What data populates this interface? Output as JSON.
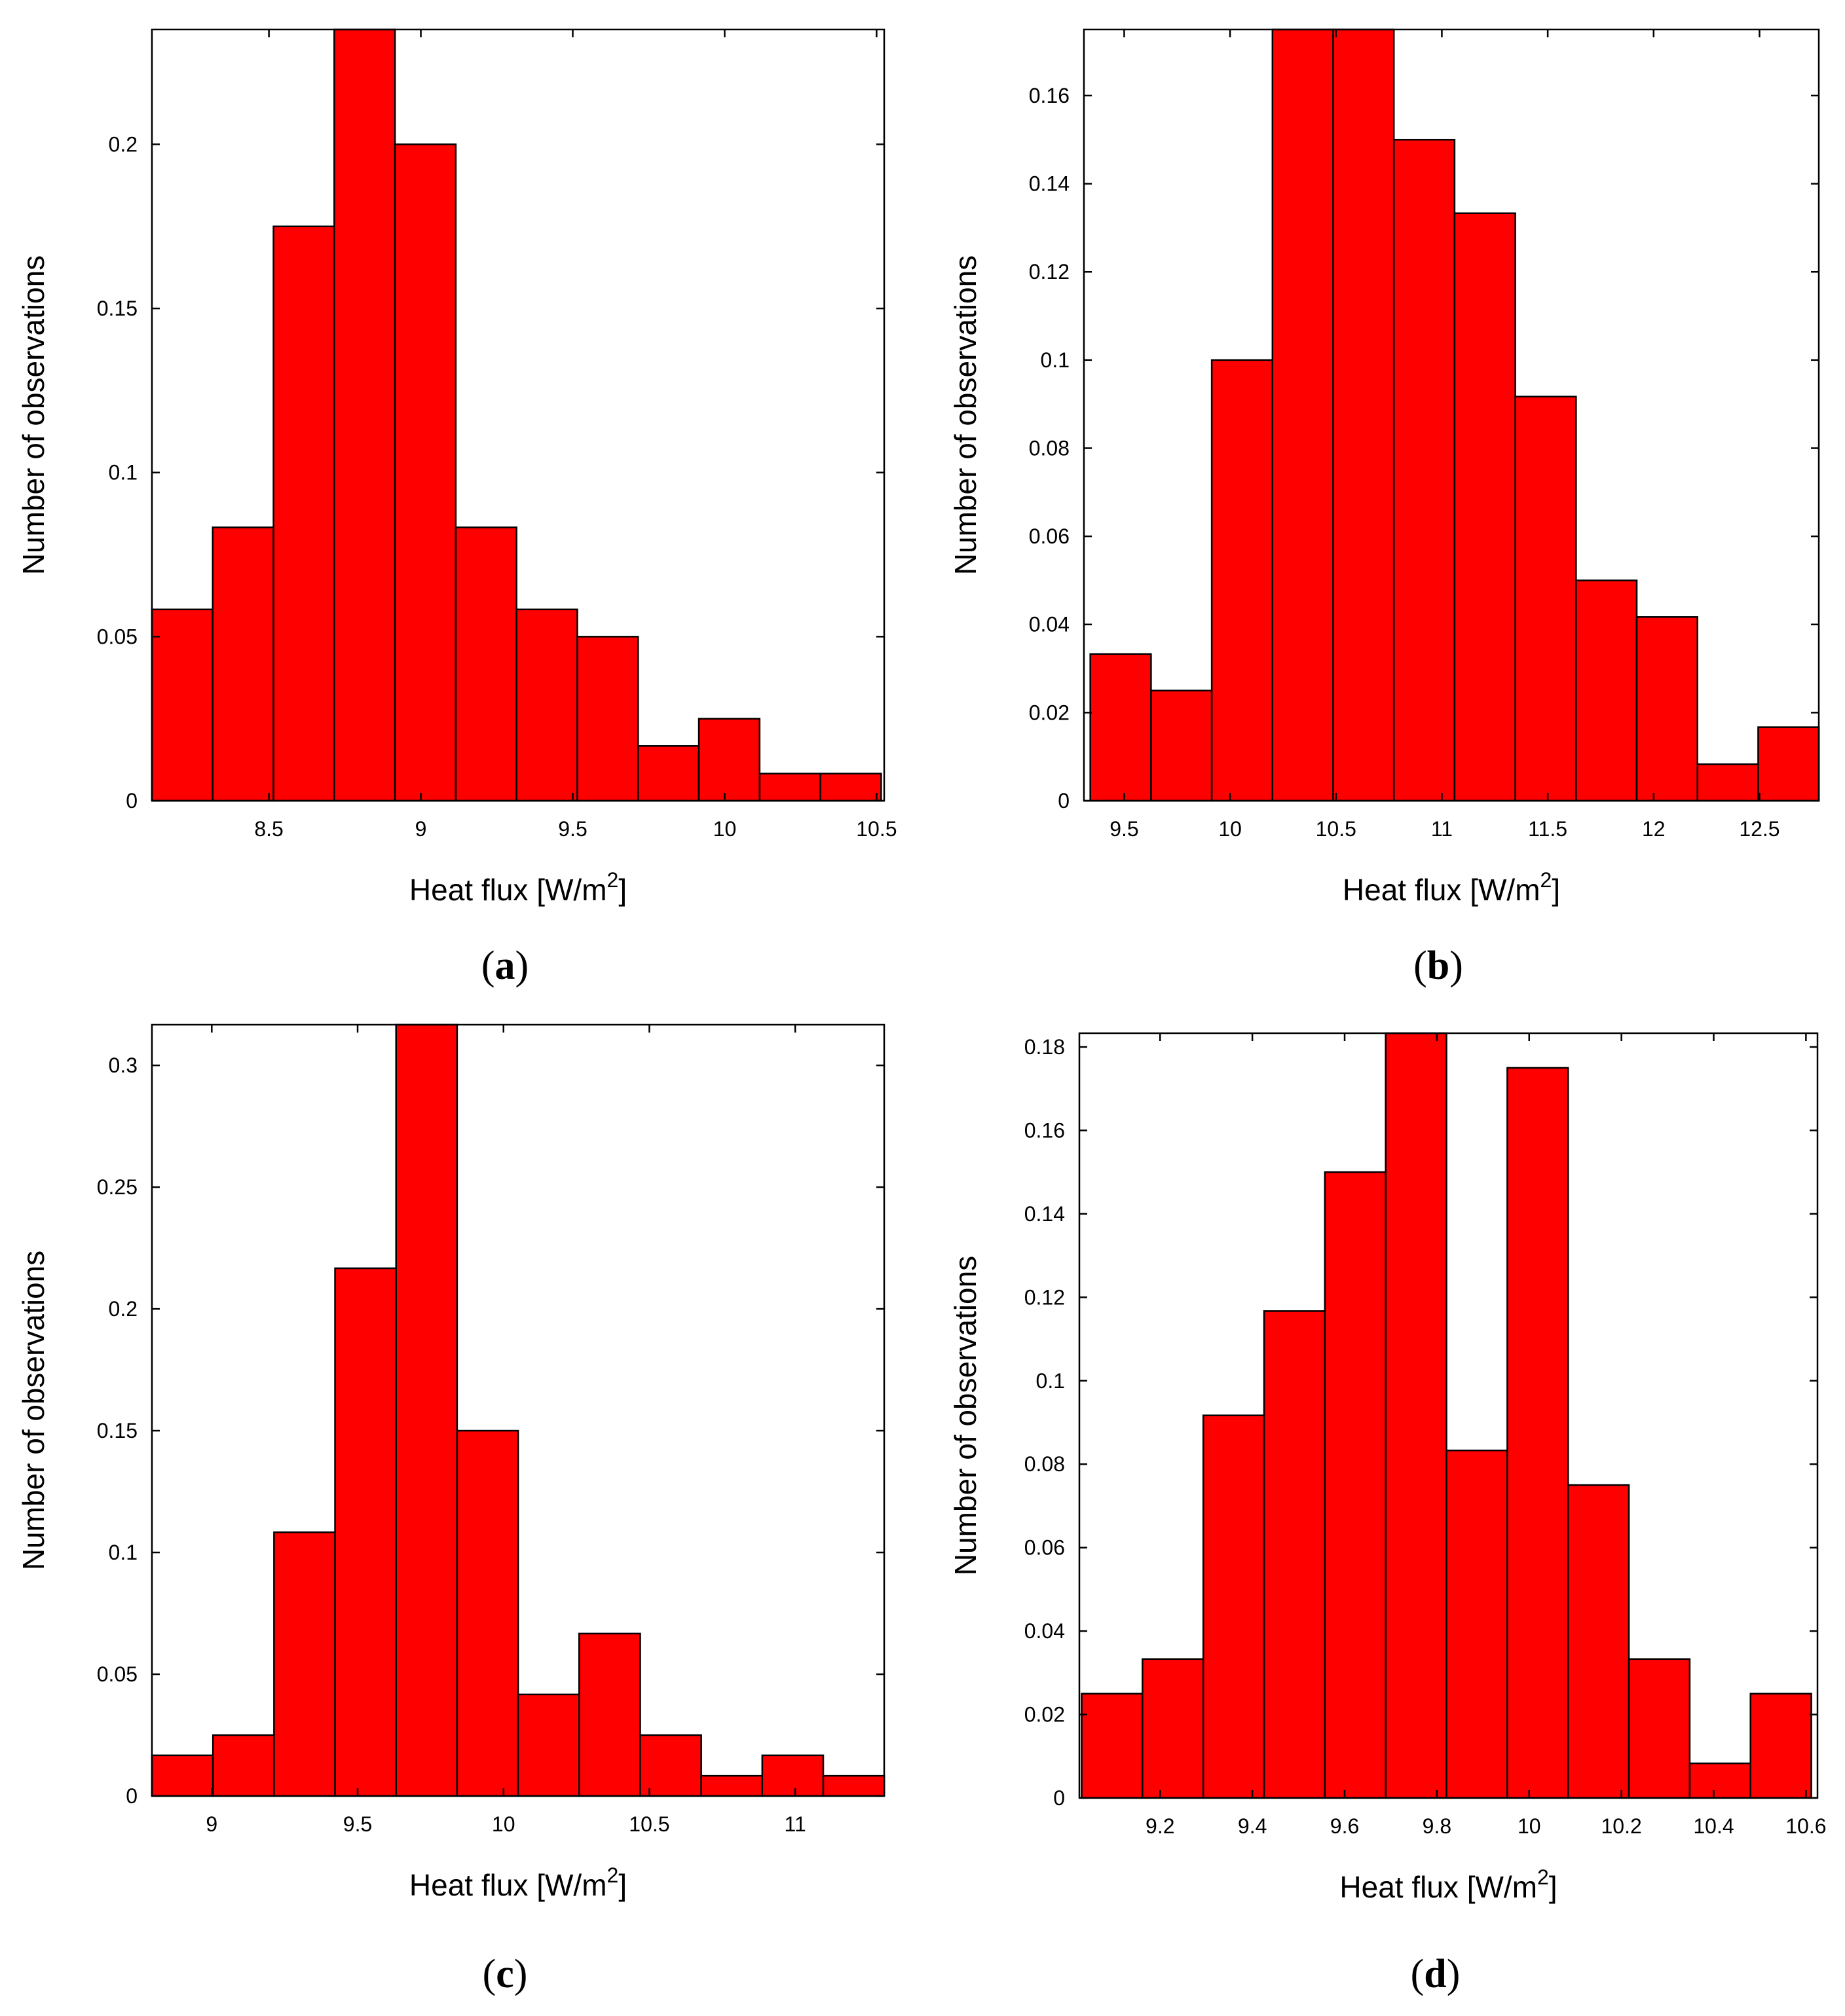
{
  "colors": {
    "bar_fill": "#ff0000",
    "bar_stroke": "#000000",
    "axis": "#000000"
  },
  "chart_data": [
    {
      "type": "bar",
      "panel": "a",
      "caption": {
        "open": "(",
        "letter": "a",
        "close": ")"
      },
      "title": "",
      "xlabel": "Heat flux [W/m",
      "xlabel_sup": "2",
      "xlabel_end": "]",
      "ylabel": "Number of observations",
      "xlim": [
        8.115,
        10.525
      ],
      "ylim": [
        0,
        0.235
      ],
      "bin_start": 8.115,
      "bin_width": 0.2,
      "values": [
        0.0583,
        0.0833,
        0.175,
        0.235,
        0.2,
        0.0833,
        0.0583,
        0.05,
        0.0167,
        0.025,
        0.0083,
        0.0083
      ],
      "xticks": [
        8.5,
        9,
        9.5,
        10,
        10.5
      ],
      "xtick_labels": [
        "8.5",
        "9",
        "9.5",
        "10",
        "10.5"
      ],
      "yticks": [
        0,
        0.05,
        0.1,
        0.15,
        0.2
      ],
      "ytick_labels": [
        "0",
        "0.05",
        "0.1",
        "0.15",
        "0.2"
      ]
    },
    {
      "type": "bar",
      "panel": "b",
      "caption": {
        "open": "(",
        "letter": "b",
        "close": ")"
      },
      "title": "",
      "xlabel": "Heat flux [W/m",
      "xlabel_sup": "2",
      "xlabel_end": "]",
      "ylabel": "Number of observations",
      "xlim": [
        9.31,
        12.78
      ],
      "ylim": [
        0,
        0.175
      ],
      "bin_start": 9.34,
      "bin_width": 0.2867,
      "values": [
        0.0333,
        0.025,
        0.1,
        0.175,
        0.175,
        0.15,
        0.1333,
        0.0917,
        0.05,
        0.0417,
        0.0083,
        0.0167
      ],
      "xticks": [
        9.5,
        10,
        10.5,
        11,
        11.5,
        12,
        12.5
      ],
      "xtick_labels": [
        "9.5",
        "10",
        "10.5",
        "11",
        "11.5",
        "12",
        "12.5"
      ],
      "yticks": [
        0,
        0.02,
        0.04,
        0.06,
        0.08,
        0.1,
        0.12,
        0.14,
        0.16
      ],
      "ytick_labels": [
        "0",
        "0.02",
        "0.04",
        "0.06",
        "0.08",
        "0.1",
        "0.12",
        "0.14",
        "0.16"
      ]
    },
    {
      "type": "bar",
      "panel": "c",
      "caption": {
        "open": "(",
        "letter": "c",
        "close": ")"
      },
      "title": "",
      "xlabel": "Heat flux [W/m",
      "xlabel_sup": "2",
      "xlabel_end": "]",
      "ylabel": "Number of observations",
      "xlim": [
        8.795,
        11.305
      ],
      "ylim": [
        0,
        0.3167
      ],
      "bin_start": 8.795,
      "bin_width": 0.2092,
      "values": [
        0.0167,
        0.025,
        0.1083,
        0.2167,
        0.3167,
        0.15,
        0.0417,
        0.0667,
        0.025,
        0.0083,
        0.0167,
        0.0083
      ],
      "xticks": [
        9,
        9.5,
        10,
        10.5,
        11
      ],
      "xtick_labels": [
        "9",
        "9.5",
        "10",
        "10.5",
        "11"
      ],
      "yticks": [
        0,
        0.05,
        0.1,
        0.15,
        0.2,
        0.25,
        0.3
      ],
      "ytick_labels": [
        "0",
        "0.05",
        "0.1",
        "0.15",
        "0.2",
        "0.25",
        "0.3"
      ]
    },
    {
      "type": "bar",
      "panel": "d",
      "caption": {
        "open": "(",
        "letter": "d",
        "close": ")"
      },
      "title": "",
      "xlabel": "Heat flux [W/m",
      "xlabel_sup": "2",
      "xlabel_end": "]",
      "ylabel": "Number of observations",
      "xlim": [
        9.025,
        10.625
      ],
      "ylim": [
        0,
        0.1833
      ],
      "bin_start": 9.03,
      "bin_width": 0.1318,
      "values": [
        0.025,
        0.0333,
        0.0917,
        0.1167,
        0.15,
        0.1833,
        0.0833,
        0.175,
        0.075,
        0.0333,
        0.0083,
        0.025
      ],
      "xticks": [
        9.2,
        9.4,
        9.6,
        9.8,
        10,
        10.2,
        10.4,
        10.6
      ],
      "xtick_labels": [
        "9.2",
        "9.4",
        "9.6",
        "9.8",
        "10",
        "10.2",
        "10.4",
        "10.6"
      ],
      "yticks": [
        0,
        0.02,
        0.04,
        0.06,
        0.08,
        0.1,
        0.12,
        0.14,
        0.16,
        0.18
      ],
      "ytick_labels": [
        "0",
        "0.02",
        "0.04",
        "0.06",
        "0.08",
        "0.1",
        "0.12",
        "0.14",
        "0.16",
        "0.18"
      ]
    }
  ]
}
